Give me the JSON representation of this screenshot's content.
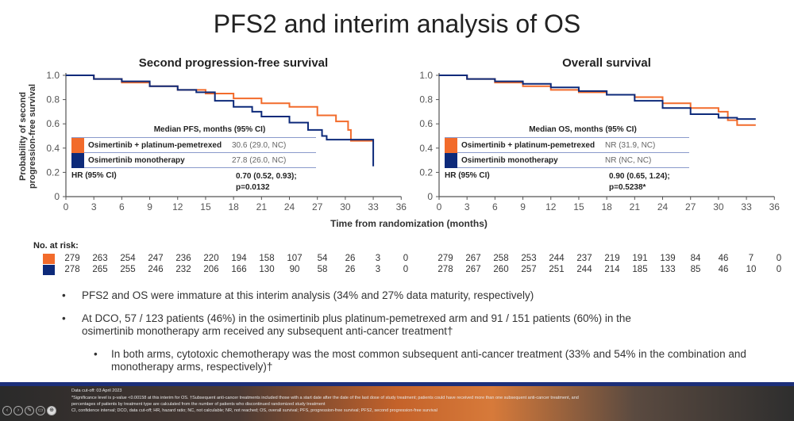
{
  "title": "PFS2 and interim analysis of OS",
  "colors": {
    "combo": "#f26b2b",
    "mono": "#0d2a7a"
  },
  "chart_data": [
    {
      "type": "line",
      "title": "Second progression-free survival",
      "ylabel": "Probability of second progression-free survival",
      "xlabel": "Time from randomization (months)",
      "xlim": [
        0,
        36
      ],
      "ylim": [
        0,
        1
      ],
      "xticks": [
        "0",
        "3",
        "6",
        "9",
        "12",
        "15",
        "18",
        "21",
        "24",
        "27",
        "30",
        "33",
        "36"
      ],
      "yticks": [
        "0",
        "0.2",
        "0.4",
        "0.6",
        "0.8",
        "1.0"
      ],
      "legend": {
        "header": "Median PFS, months (95% CI)",
        "rows": [
          {
            "name": "Osimertinib + platinum-pemetrexed",
            "value": "30.6 (29.0, NC)"
          },
          {
            "name": "Osimertinib monotherapy",
            "value": "27.8 (26.0, NC)"
          }
        ],
        "hr_label": "HR (95% CI)",
        "hr_value": "0.70 (0.52, 0.93);",
        "p_value": "p=0.0132"
      },
      "series": [
        {
          "name": "Osimertinib + platinum-pemetrexed",
          "x": [
            0,
            3,
            6,
            9,
            12,
            15,
            18,
            21,
            24,
            27,
            29,
            30.3,
            30.6,
            33
          ],
          "y": [
            1,
            0.97,
            0.94,
            0.91,
            0.88,
            0.85,
            0.81,
            0.77,
            0.74,
            0.67,
            0.62,
            0.55,
            0.46,
            0.46
          ]
        },
        {
          "name": "Osimertinib monotherapy",
          "x": [
            0,
            3,
            6,
            9,
            12,
            14,
            16,
            18,
            20,
            21,
            24,
            26,
            27.5,
            28,
            33,
            33
          ],
          "y": [
            1,
            0.97,
            0.95,
            0.91,
            0.88,
            0.86,
            0.79,
            0.74,
            0.7,
            0.66,
            0.61,
            0.55,
            0.5,
            0.47,
            0.47,
            0.25
          ]
        }
      ],
      "at_risk": {
        "label": "No. at risk:",
        "combo": [
          "279",
          "263",
          "254",
          "247",
          "236",
          "220",
          "194",
          "158",
          "107",
          "54",
          "26",
          "3",
          "0"
        ],
        "mono": [
          "278",
          "265",
          "255",
          "246",
          "232",
          "206",
          "166",
          "130",
          "90",
          "58",
          "26",
          "3",
          "0"
        ]
      }
    },
    {
      "type": "line",
      "title": "Overall survival",
      "xlim": [
        0,
        36
      ],
      "ylim": [
        0,
        1
      ],
      "xticks": [
        "0",
        "3",
        "6",
        "9",
        "12",
        "15",
        "18",
        "21",
        "24",
        "27",
        "30",
        "33",
        "36"
      ],
      "yticks": [
        "0",
        "0.2",
        "0.4",
        "0.6",
        "0.8",
        "1.0"
      ],
      "legend": {
        "header": "Median OS, months (95% CI)",
        "rows": [
          {
            "name": "Osimertinib + platinum-pemetrexed",
            "value": "NR (31.9, NC)"
          },
          {
            "name": "Osimertinib monotherapy",
            "value": "NR (NC, NC)"
          }
        ],
        "hr_label": "HR (95% CI)",
        "hr_value": "0.90 (0.65, 1.24);",
        "p_value": "p=0.5238*"
      },
      "series": [
        {
          "name": "Osimertinib + platinum-pemetrexed",
          "x": [
            0,
            3,
            6,
            9,
            12,
            15,
            18,
            21,
            24,
            27,
            30,
            31,
            32,
            34
          ],
          "y": [
            1,
            0.97,
            0.94,
            0.91,
            0.88,
            0.86,
            0.84,
            0.82,
            0.77,
            0.73,
            0.7,
            0.63,
            0.59,
            0.59
          ]
        },
        {
          "name": "Osimertinib monotherapy",
          "x": [
            0,
            3,
            6,
            9,
            12,
            15,
            18,
            21,
            24,
            27,
            30,
            32,
            34
          ],
          "y": [
            1,
            0.97,
            0.95,
            0.93,
            0.9,
            0.87,
            0.84,
            0.79,
            0.73,
            0.68,
            0.65,
            0.64,
            0.64
          ]
        }
      ],
      "at_risk": {
        "combo": [
          "279",
          "267",
          "258",
          "253",
          "244",
          "237",
          "219",
          "191",
          "139",
          "84",
          "46",
          "7",
          "0"
        ],
        "mono": [
          "278",
          "267",
          "260",
          "257",
          "251",
          "244",
          "214",
          "185",
          "133",
          "85",
          "46",
          "10",
          "0"
        ]
      }
    }
  ],
  "bullets": [
    "PFS2 and OS were immature at this interim analysis (34% and 27% data maturity, respectively)",
    "At DCO, 57 / 123 patients (46%) in the osimertinib plus platinum-pemetrexed arm and 91 / 151 patients (60%) in the osimertinib monotherapy arm received any subsequent anti-cancer treatment†",
    "In both arms, cytotoxic chemotherapy was the most common subsequent anti-cancer treatment (33% and 54% in the combination and monotherapy arms, respectively)†"
  ],
  "footer": {
    "lines": [
      "Data cut-off: 03 April 2023",
      "*Significance level is p-value <0.00158 at this interim for OS. †Subsequent anti-cancer treatments included those with a start date after the date of the last dose of study treatment; patients could have received more than one subsequent anti-cancer treatment, and",
      "percentages of patients by treatment type are calculated from the number of patients who discontinued randomized study treatment",
      "CI, confidence interval; DCO, data cut-off; HR, hazard ratio; NC, not calculable; NR, not reached; OS, overall survival; PFS, progression-free survival; PFS2, second progression-free survival"
    ]
  }
}
